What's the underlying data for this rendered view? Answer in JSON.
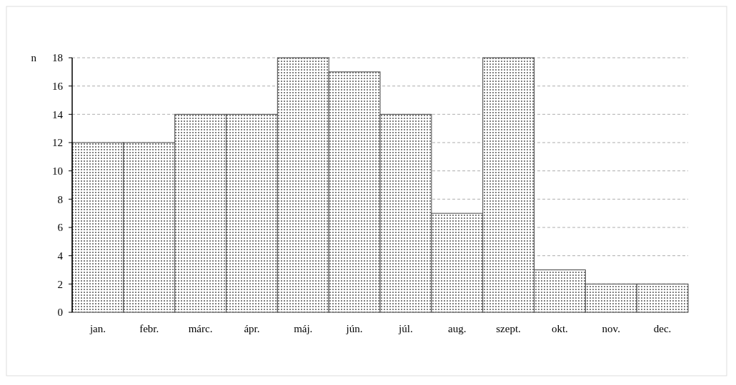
{
  "chart_data": {
    "type": "bar",
    "ylabel": "n",
    "categories": [
      "jan.",
      "febr.",
      "márc.",
      "ápr.",
      "máj.",
      "jún.",
      "júl.",
      "aug.",
      "szept.",
      "okt.",
      "nov.",
      "dec."
    ],
    "values": [
      12,
      12,
      14,
      14,
      18,
      17,
      14,
      7,
      18,
      3,
      2,
      2
    ],
    "color": "#444444",
    "ylim": [
      0,
      18
    ],
    "yticks": [
      0,
      2,
      4,
      6,
      8,
      10,
      12,
      14,
      16,
      18
    ],
    "grid": "y"
  }
}
